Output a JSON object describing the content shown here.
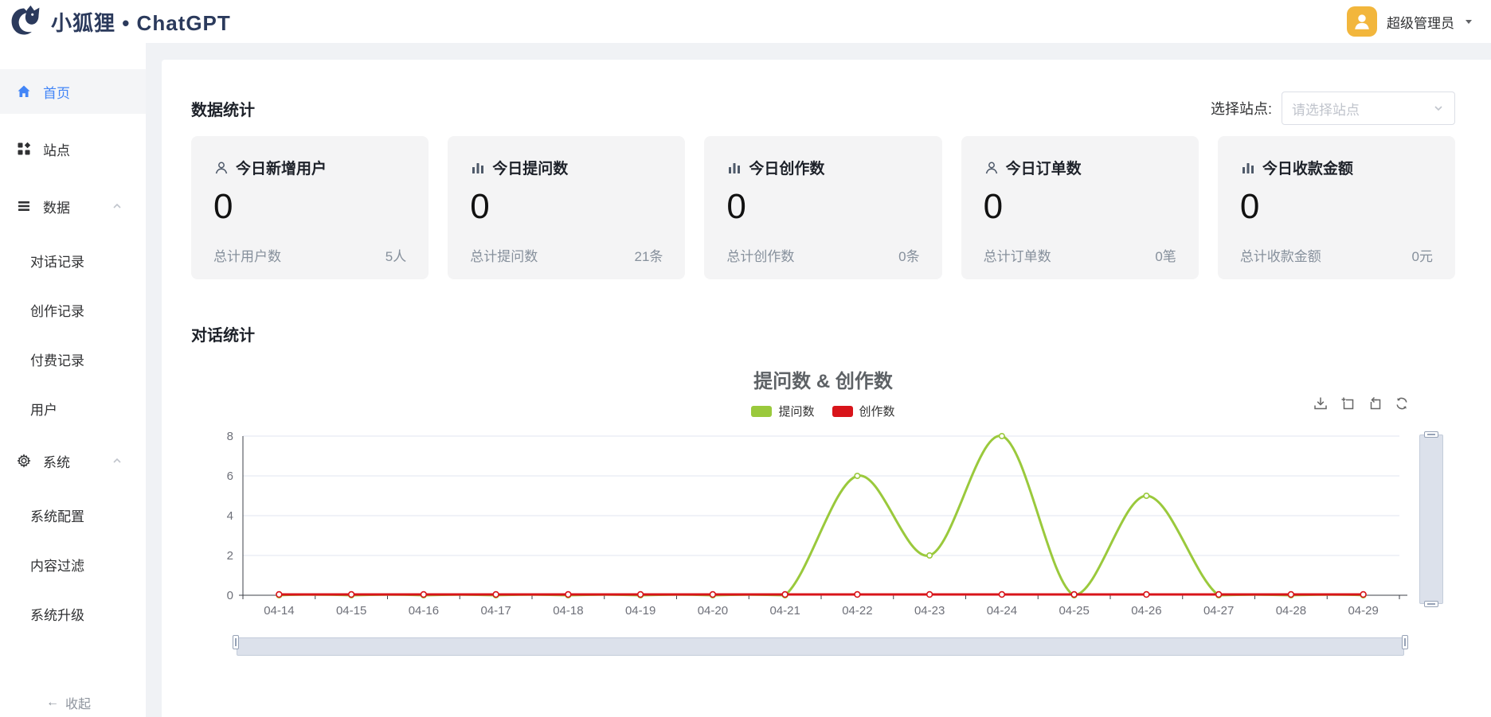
{
  "header": {
    "brand": "小狐狸 • ChatGPT",
    "user_name": "超级管理员"
  },
  "sidebar": {
    "items": [
      {
        "key": "home",
        "label": "首页",
        "icon": "home-icon",
        "active": true
      },
      {
        "key": "sites",
        "label": "站点",
        "icon": "grid-icon"
      },
      {
        "key": "data",
        "label": "数据",
        "icon": "list-icon",
        "expanded": true,
        "children": [
          {
            "key": "chat-records",
            "label": "对话记录"
          },
          {
            "key": "creation-records",
            "label": "创作记录"
          },
          {
            "key": "payment-records",
            "label": "付费记录"
          },
          {
            "key": "users",
            "label": "用户"
          }
        ]
      },
      {
        "key": "system",
        "label": "系统",
        "icon": "gear-icon",
        "expanded": true,
        "children": [
          {
            "key": "system-config",
            "label": "系统配置"
          },
          {
            "key": "content-filter",
            "label": "内容过滤"
          },
          {
            "key": "system-upgrade",
            "label": "系统升级"
          }
        ]
      }
    ],
    "collapse_label": "收起"
  },
  "stats": {
    "section_title": "数据统计",
    "site_select": {
      "label": "选择站点:",
      "placeholder": "请选择站点"
    },
    "cards": [
      {
        "icon": "user-icon",
        "title": "今日新增用户",
        "value": "0",
        "total_label": "总计用户数",
        "total_value": "5人"
      },
      {
        "icon": "bar-chart-icon",
        "title": "今日提问数",
        "value": "0",
        "total_label": "总计提问数",
        "total_value": "21条"
      },
      {
        "icon": "bar-chart-icon",
        "title": "今日创作数",
        "value": "0",
        "total_label": "总计创作数",
        "total_value": "0条"
      },
      {
        "icon": "user-icon",
        "title": "今日订单数",
        "value": "0",
        "total_label": "总计订单数",
        "total_value": "0笔"
      },
      {
        "icon": "bar-chart-icon",
        "title": "今日收款金额",
        "value": "0",
        "total_label": "总计收款金额",
        "total_value": "0元"
      }
    ]
  },
  "conversation": {
    "section_title": "对话统计"
  },
  "chart_data": {
    "type": "line",
    "title": "提问数 & 创作数",
    "categories": [
      "04-14",
      "04-15",
      "04-16",
      "04-17",
      "04-18",
      "04-19",
      "04-20",
      "04-21",
      "04-22",
      "04-23",
      "04-24",
      "04-25",
      "04-26",
      "04-27",
      "04-28",
      "04-29"
    ],
    "series": [
      {
        "name": "提问数",
        "color": "#9ac93c",
        "smooth": true,
        "values": [
          0,
          0,
          0,
          0,
          0,
          0,
          0,
          0,
          6,
          2,
          8,
          0,
          5,
          0,
          0,
          0
        ]
      },
      {
        "name": "创作数",
        "color": "#d8141a",
        "smooth": false,
        "values": [
          0,
          0,
          0,
          0,
          0,
          0,
          0,
          0,
          0,
          0,
          0,
          0,
          0,
          0,
          0,
          0
        ]
      }
    ],
    "ylim": [
      0,
      8
    ],
    "yticks": [
      0,
      2,
      4,
      6,
      8
    ],
    "legend_position": "top",
    "grid": true,
    "toolbox": [
      "save-image-icon",
      "data-zoom-icon",
      "zoom-reset-icon",
      "restore-icon"
    ]
  }
}
